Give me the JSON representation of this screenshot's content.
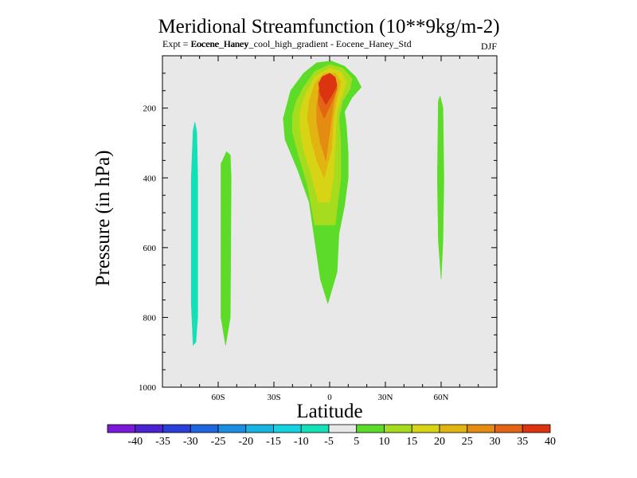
{
  "chart_data": {
    "type": "contour",
    "title": "Meridional Streamfunction (10**9kg/m-2)",
    "subtitle_overlap": "Expt = Eocene_Haney",
    "subtitle": "Eocene_Haney_cool_high_gradient - Eocene_Haney_Std",
    "season": "DJF",
    "xlabel": "Latitude",
    "ylabel": "Pressure (in hPa)",
    "xlim": [
      -90,
      90
    ],
    "ylim": [
      1000,
      50
    ],
    "y_inverted": true,
    "background_color": "#e8e8e8",
    "x_ticks": [
      {
        "value": -60,
        "label": "60S"
      },
      {
        "value": -30,
        "label": "30S"
      },
      {
        "value": 0,
        "label": "0"
      },
      {
        "value": 30,
        "label": "30N"
      },
      {
        "value": 60,
        "label": "60N"
      }
    ],
    "y_ticks": [
      {
        "value": 200,
        "label": "200"
      },
      {
        "value": 400,
        "label": "400"
      },
      {
        "value": 600,
        "label": "600"
      },
      {
        "value": 800,
        "label": "800"
      },
      {
        "value": 1000,
        "label": "1000"
      }
    ],
    "colorbar": {
      "colors": [
        "#7a1ad8",
        "#4a22d0",
        "#2a3ed8",
        "#1f66e0",
        "#1a8fe2",
        "#17b4e0",
        "#14d2e0",
        "#14e0b8",
        "#e8e8e8",
        "#5cdc28",
        "#a6dc1e",
        "#d6d414",
        "#e2b412",
        "#e48c12",
        "#e26414",
        "#dc3410"
      ],
      "labels": [
        "-40",
        "-35",
        "-30",
        "-25",
        "-20",
        "-15",
        "-10",
        "-5",
        "5",
        "10",
        "15",
        "20",
        "25",
        "30",
        "35",
        "40"
      ]
    },
    "contour_regions": [
      {
        "level": -5,
        "color": "#14e0b8",
        "points": [
          [
            -73.5,
            880
          ],
          [
            -74.5,
            760
          ],
          [
            -74.5,
            400
          ],
          [
            -73.5,
            265
          ],
          [
            -72.5,
            240
          ],
          [
            -71.5,
            270
          ],
          [
            -71,
            400
          ],
          [
            -71,
            800
          ],
          [
            -72,
            870
          ]
        ]
      },
      {
        "level": 5,
        "color": "#5cdc28",
        "points": [
          [
            -56,
            880
          ],
          [
            -58.5,
            800
          ],
          [
            -58.5,
            360
          ],
          [
            -55.5,
            325
          ],
          [
            -53.5,
            335
          ],
          [
            -53,
            400
          ],
          [
            -53.5,
            800
          ]
        ]
      },
      {
        "level": 5,
        "color": "#5cdc28",
        "points": [
          [
            60,
            690
          ],
          [
            58.5,
            580
          ],
          [
            58,
            400
          ],
          [
            58.5,
            180
          ],
          [
            59.5,
            165
          ],
          [
            61,
            200
          ],
          [
            61.5,
            400
          ],
          [
            61,
            580
          ]
        ]
      },
      {
        "level": 5,
        "color": "#5cdc28",
        "points": [
          [
            -1,
            760
          ],
          [
            -5,
            690
          ],
          [
            -11,
            470
          ],
          [
            -17,
            380
          ],
          [
            -24,
            290
          ],
          [
            -25,
            230
          ],
          [
            -21,
            150
          ],
          [
            -14,
            100
          ],
          [
            -7,
            70
          ],
          [
            1,
            65
          ],
          [
            8,
            80
          ],
          [
            14,
            110
          ],
          [
            17,
            140
          ],
          [
            12,
            170
          ],
          [
            8,
            210
          ],
          [
            9,
            250
          ],
          [
            10,
            330
          ],
          [
            10,
            400
          ],
          [
            8,
            480
          ],
          [
            5,
            560
          ],
          [
            4,
            670
          ]
        ]
      },
      {
        "level": 10,
        "color": "#a6dc1e",
        "points": [
          [
            -8,
            535
          ],
          [
            -12,
            420
          ],
          [
            -17,
            330
          ],
          [
            -20,
            270
          ],
          [
            -20,
            220
          ],
          [
            -18,
            180
          ],
          [
            -14,
            140
          ],
          [
            -8,
            95
          ],
          [
            0,
            75
          ],
          [
            7,
            85
          ],
          [
            12,
            115
          ],
          [
            11,
            145
          ],
          [
            7,
            180
          ],
          [
            5,
            230
          ],
          [
            6,
            300
          ],
          [
            6,
            400
          ],
          [
            3,
            535
          ]
        ]
      },
      {
        "level": 15,
        "color": "#d6d414",
        "points": [
          [
            -6,
            470
          ],
          [
            -10,
            390
          ],
          [
            -14,
            320
          ],
          [
            -16,
            260
          ],
          [
            -16,
            210
          ],
          [
            -13,
            160
          ],
          [
            -8,
            110
          ],
          [
            0,
            85
          ],
          [
            6,
            95
          ],
          [
            9,
            125
          ],
          [
            7,
            160
          ],
          [
            4,
            210
          ],
          [
            3,
            300
          ],
          [
            2,
            400
          ],
          [
            0,
            470
          ]
        ]
      },
      {
        "level": 20,
        "color": "#e2b412",
        "points": [
          [
            -3,
            400
          ],
          [
            -7,
            350
          ],
          [
            -10,
            290
          ],
          [
            -12,
            230
          ],
          [
            -11,
            180
          ],
          [
            -8,
            130
          ],
          [
            -3,
            100
          ],
          [
            3,
            100
          ],
          [
            6,
            125
          ],
          [
            4,
            170
          ],
          [
            2,
            230
          ],
          [
            1,
            320
          ]
        ]
      },
      {
        "level": 25,
        "color": "#e48c12",
        "points": [
          [
            -2,
            350
          ],
          [
            -5,
            300
          ],
          [
            -7,
            240
          ],
          [
            -7,
            190
          ],
          [
            -5,
            140
          ],
          [
            -1,
            105
          ],
          [
            3,
            110
          ],
          [
            4,
            140
          ],
          [
            2,
            190
          ],
          [
            0,
            270
          ]
        ]
      },
      {
        "level": 30,
        "color": "#e26414",
        "points": [
          [
            -3,
            230
          ],
          [
            -6,
            190
          ],
          [
            -6,
            150
          ],
          [
            -4,
            115
          ],
          [
            0,
            100
          ],
          [
            3,
            115
          ],
          [
            4,
            145
          ],
          [
            1,
            185
          ]
        ]
      },
      {
        "level": 35,
        "color": "#dc3410",
        "points": [
          [
            -2,
            190
          ],
          [
            -5,
            160
          ],
          [
            -6,
            130
          ],
          [
            -4,
            110
          ],
          [
            0,
            100
          ],
          [
            3,
            112
          ],
          [
            4,
            135
          ],
          [
            1,
            165
          ]
        ]
      }
    ]
  }
}
